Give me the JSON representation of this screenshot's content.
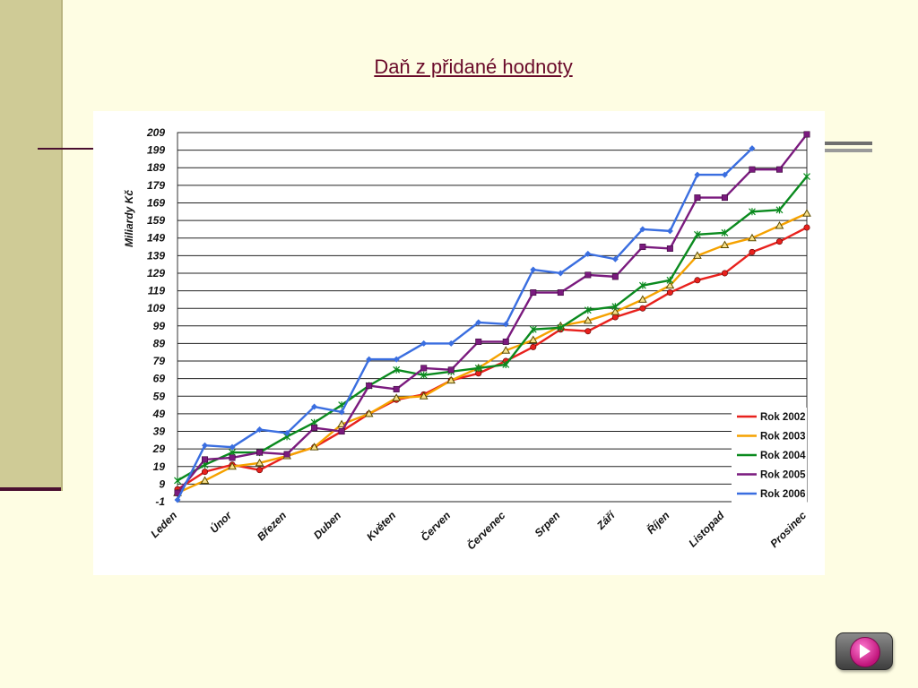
{
  "slide": {
    "title": "Daň z přidané hodnoty",
    "nav_icon": "play-icon"
  },
  "chart_data": {
    "type": "line",
    "ylabel": "Miliardy Kč",
    "xlabel": "",
    "ylim": [
      -1,
      209
    ],
    "yticks": [
      -1,
      9,
      19,
      29,
      39,
      49,
      59,
      69,
      79,
      89,
      99,
      109,
      119,
      129,
      139,
      149,
      159,
      169,
      179,
      189,
      199,
      209
    ],
    "grid": true,
    "legend": "bottom-right",
    "month_labels": [
      "Leden",
      "Únor",
      "Březen",
      "Duben",
      "Květen",
      "Červen",
      "Červenec",
      "Srpen",
      "Září",
      "Říjen",
      "Listopad",
      "Prosinec"
    ],
    "series": [
      {
        "name": "Rok 2002",
        "color": "#e8211d",
        "marker": "circle",
        "values": [
          6,
          16,
          20,
          17,
          25,
          30,
          39,
          49,
          57,
          60,
          68,
          72,
          79,
          87,
          97,
          96,
          104,
          109,
          118,
          125,
          129,
          141,
          147,
          155
        ]
      },
      {
        "name": "Rok 2003",
        "color": "#f5a200",
        "marker": "triangle",
        "values": [
          4,
          11,
          19,
          21,
          25,
          30,
          43,
          49,
          58,
          59,
          68,
          75,
          85,
          91,
          99,
          102,
          107,
          114,
          122,
          139,
          145,
          149,
          156,
          163
        ]
      },
      {
        "name": "Rok 2004",
        "color": "#0a8a1e",
        "marker": "star",
        "values": [
          11,
          20,
          27,
          27,
          36,
          44,
          54,
          65,
          74,
          71,
          73,
          75,
          77,
          97,
          98,
          108,
          110,
          122,
          125,
          151,
          152,
          164,
          165,
          184
        ]
      },
      {
        "name": "Rok 2005",
        "color": "#7a1a7e",
        "marker": "square",
        "values": [
          4,
          23,
          24,
          27,
          26,
          41,
          39,
          65,
          63,
          75,
          74,
          90,
          90,
          118,
          118,
          128,
          127,
          144,
          143,
          172,
          172,
          188,
          188,
          208
        ]
      },
      {
        "name": "Rok 2006",
        "color": "#3a6ee0",
        "marker": "diamond",
        "values": [
          0,
          31,
          30,
          40,
          38,
          53,
          50,
          80,
          80,
          89,
          89,
          101,
          100,
          131,
          129,
          140,
          137,
          154,
          153,
          185,
          185,
          200
        ]
      }
    ]
  }
}
